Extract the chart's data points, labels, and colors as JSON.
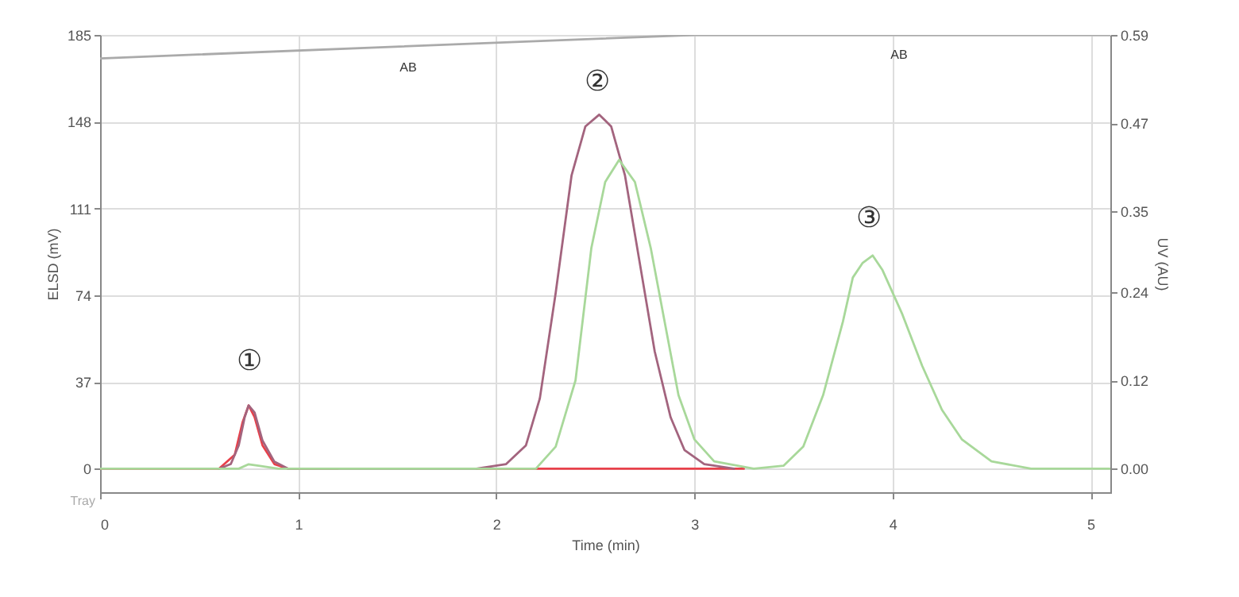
{
  "chart_data": {
    "type": "line",
    "xlabel": "Time (min)",
    "ylabel": "ELSD (mV)",
    "y2label": "UV (AU)",
    "xlim": [
      0,
      5.1
    ],
    "xticks": [
      0,
      1,
      2,
      3,
      4,
      5
    ],
    "ylim": [
      -10,
      185
    ],
    "yticks": [
      0,
      37,
      74,
      111,
      148,
      185
    ],
    "y2lim": [
      -0.032,
      0.59
    ],
    "y2ticks": [
      {
        "value": 0,
        "label": "0.00"
      },
      0.12,
      0.24,
      0.35,
      0.47,
      0.59
    ],
    "grid": true,
    "line_style": "solid",
    "marker": "none",
    "series": [
      {
        "color": "#aaaaaa",
        "x": [
          0,
          3,
          5.1
        ],
        "values": [
          175,
          185,
          185
        ]
      },
      {
        "color": "#e8404a",
        "x": [
          0,
          0.6,
          0.68,
          0.72,
          0.75,
          0.78,
          0.82,
          0.88,
          0.95,
          1.2,
          1.5,
          1.9,
          2.5,
          3.0,
          3.25
        ],
        "values": [
          0,
          0,
          6,
          20,
          27,
          22,
          10,
          2,
          0,
          0,
          null,
          0,
          0,
          0,
          0
        ]
      },
      {
        "color": "#a3647e",
        "x": [
          0.6,
          0.66,
          0.7,
          0.73,
          0.75,
          0.78,
          0.82,
          0.88,
          0.95,
          1.0,
          1.9,
          2.05,
          2.15,
          2.22,
          2.3,
          2.38,
          2.45,
          2.52,
          2.58,
          2.65,
          2.72,
          2.8,
          2.88,
          2.95,
          3.05,
          3.2
        ],
        "values": [
          0,
          2,
          10,
          22,
          27,
          24,
          12,
          3,
          0,
          0,
          0,
          2,
          10,
          30,
          75,
          125,
          146,
          151,
          146,
          125,
          90,
          50,
          22,
          8,
          2,
          0
        ]
      },
      {
        "color": "#a8d89a",
        "axis": "y2",
        "x": [
          0,
          0.7,
          0.75,
          0.8,
          0.9,
          2.2,
          2.3,
          2.4,
          2.48,
          2.55,
          2.62,
          2.7,
          2.78,
          2.85,
          2.92,
          3.0,
          3.1,
          3.3,
          3.45,
          3.55,
          3.65,
          3.75,
          3.8,
          3.85,
          3.9,
          3.95,
          4.05,
          4.15,
          4.25,
          4.35,
          4.5,
          4.7,
          5.1
        ],
        "values": [
          0,
          0,
          0.006,
          0.004,
          0,
          0,
          0.03,
          0.12,
          0.3,
          0.39,
          0.42,
          0.39,
          0.3,
          0.2,
          0.1,
          0.04,
          0.01,
          0,
          0.004,
          0.03,
          0.1,
          0.2,
          0.26,
          0.28,
          0.29,
          0.27,
          0.21,
          0.14,
          0.08,
          0.04,
          0.01,
          0,
          0
        ]
      }
    ],
    "annotations": [
      "①",
      "②",
      "③",
      "AB",
      "AB",
      "Tray"
    ]
  }
}
